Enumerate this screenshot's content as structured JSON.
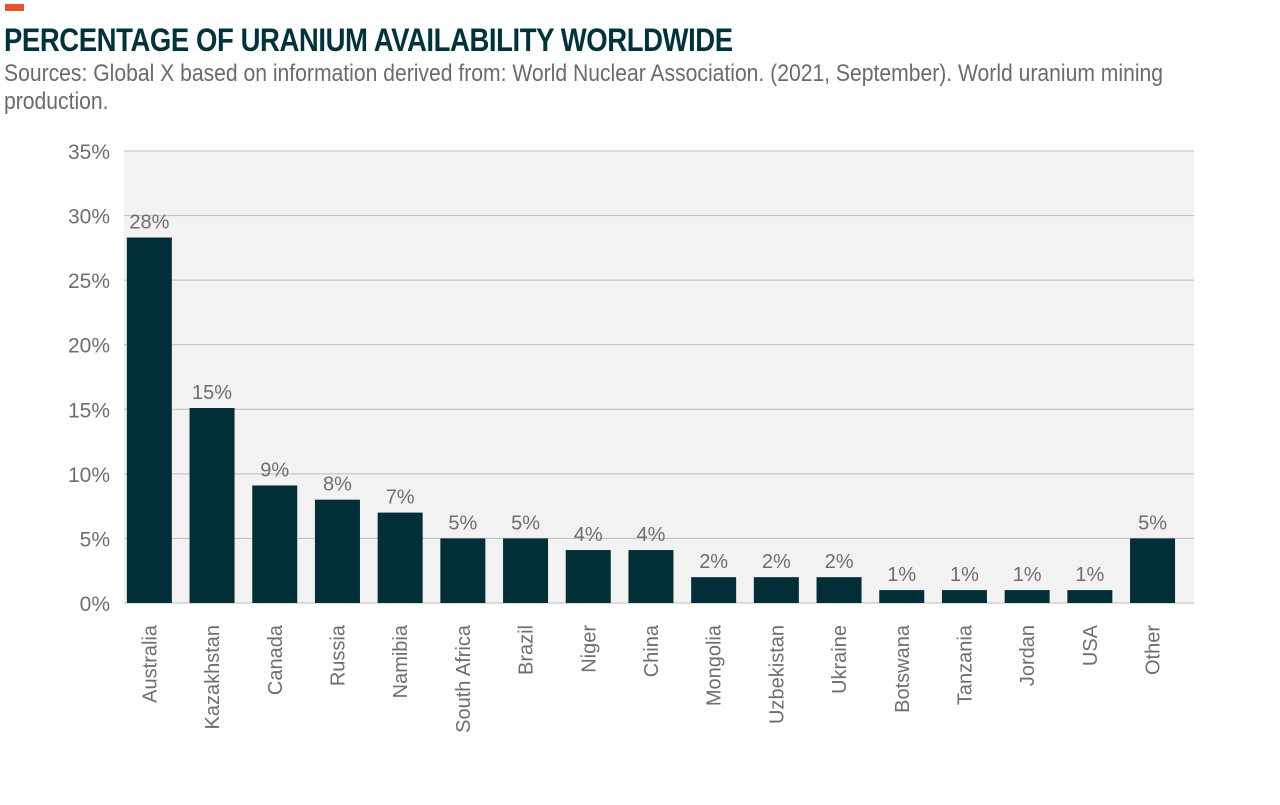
{
  "title": "PERCENTAGE OF URANIUM AVAILABILITY WORLDWIDE",
  "subtitle": "Sources: Global X based on information derived from: World Nuclear Association. (2021, September). World uranium mining production.",
  "colors": {
    "accent": "#e8532b",
    "bar": "#022e38",
    "plot_background": "#f2f2f2",
    "grid": "#bdbdbd",
    "text": "#6e6e6e",
    "title": "#00323c"
  },
  "chart_data": {
    "type": "bar",
    "categories": [
      "Australia",
      "Kazakhstan",
      "Canada",
      "Russia",
      "Namibia",
      "South Africa",
      "Brazil",
      "Niger",
      "China",
      "Mongolia",
      "Uzbekistan",
      "Ukraine",
      "Botswana",
      "Tanzania",
      "Jordan",
      "USA",
      "Other"
    ],
    "values": [
      28.3,
      15.1,
      9.1,
      8.0,
      7.0,
      5.0,
      5.0,
      4.1,
      4.1,
      2.0,
      2.0,
      2.0,
      1.0,
      1.0,
      1.0,
      1.0,
      5.0
    ],
    "data_labels": [
      "28%",
      "15%",
      "9%",
      "8%",
      "7%",
      "5%",
      "5%",
      "4%",
      "4%",
      "2%",
      "2%",
      "2%",
      "1%",
      "1%",
      "1%",
      "1%",
      "5%"
    ],
    "yticks": [
      "0%",
      "5%",
      "10%",
      "15%",
      "20%",
      "25%",
      "30%",
      "35%"
    ],
    "ylim": [
      0,
      35
    ],
    "xlabel": "",
    "ylabel": "",
    "grid": true,
    "legend": false
  }
}
